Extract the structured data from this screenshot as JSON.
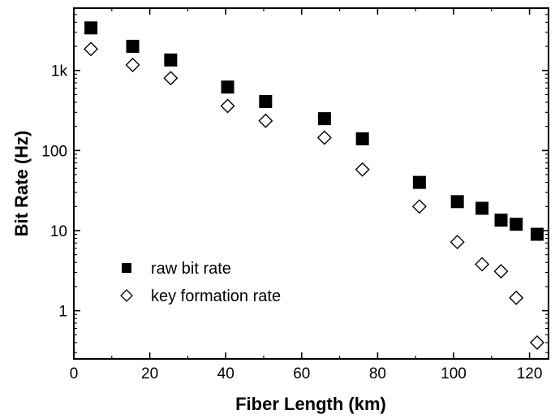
{
  "chart_data": {
    "type": "scatter",
    "xlabel": "Fiber Length (km)",
    "ylabel": "Bit Rate (Hz)",
    "xlim": [
      0,
      125
    ],
    "ylim": [
      0.25,
      6000
    ],
    "yscale": "log",
    "grid": false,
    "legend_position": "bottom-left",
    "x_ticks": [
      0,
      20,
      40,
      60,
      80,
      100,
      120
    ],
    "y_ticks": [
      {
        "value": 1,
        "label": "1"
      },
      {
        "value": 10,
        "label": "10"
      },
      {
        "value": 100,
        "label": "100"
      },
      {
        "value": 1000,
        "label": "1k"
      }
    ],
    "series": [
      {
        "name": "raw bit rate",
        "marker": "filled-square",
        "color": "#000000",
        "x": [
          4.5,
          15.5,
          25.5,
          40.5,
          50.5,
          66,
          76,
          91,
          101,
          107.5,
          112.5,
          116.5,
          122
        ],
        "y": [
          3400,
          2000,
          1350,
          620,
          410,
          250,
          140,
          40,
          23,
          19,
          13.5,
          12,
          9
        ]
      },
      {
        "name": "key formation rate",
        "marker": "open-diamond",
        "color": "#000000",
        "x": [
          4.5,
          15.5,
          25.5,
          40.5,
          50.5,
          66,
          76,
          91,
          101,
          107.5,
          112.5,
          116.5,
          122
        ],
        "y": [
          1850,
          1170,
          800,
          360,
          235,
          145,
          58,
          20,
          7.2,
          3.8,
          3.1,
          1.45,
          0.4
        ]
      }
    ]
  }
}
